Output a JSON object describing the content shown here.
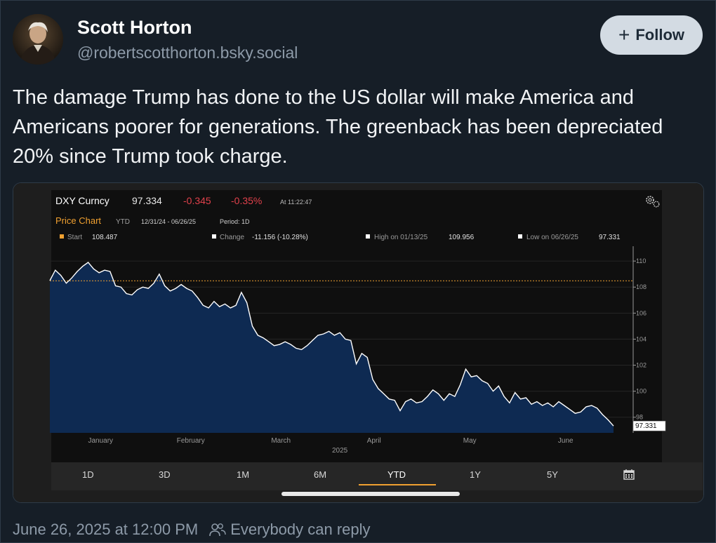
{
  "author": {
    "name": "Scott Horton",
    "handle": "@robertscotthorton.bsky.social"
  },
  "follow_button": {
    "label": "Follow"
  },
  "post": {
    "text": "The damage Trump has done to the US dollar will make America and Americans poorer for generations. The greenback has been depreciated 20% since Trump took charge."
  },
  "chart_header": {
    "ticker": "DXY Curncy",
    "price": "97.334",
    "change": "-0.345",
    "change_pct": "-0.35%",
    "time": "At 11:22:47",
    "chart_title": "Price Chart",
    "range_label": "YTD",
    "date_range": "12/31/24 - 06/26/25",
    "period": "Period: 1D",
    "start_label": "Start",
    "start_value": "108.487",
    "change_label": "Change",
    "change_value": "-11.156 (-10.28%)",
    "high_label": "High on 01/13/25",
    "high_value": "109.956",
    "low_label": "Low on 06/26/25",
    "low_value": "97.331",
    "last_value_label": "97.331",
    "year_label": "2025"
  },
  "timeframes": [
    "1D",
    "3D",
    "1M",
    "6M",
    "YTD",
    "1Y",
    "5Y"
  ],
  "active_timeframe": "YTD",
  "colors": {
    "accent_orange": "#f0a030",
    "negative_red": "#e0414b",
    "area_fill": "#0e2a52",
    "line": "#ffffff"
  },
  "chart_data": {
    "type": "area",
    "x_tick_labels": [
      "January",
      "February",
      "March",
      "April",
      "May",
      "June"
    ],
    "y_ticks": [
      98,
      100,
      102,
      104,
      106,
      108,
      110
    ],
    "ylim": [
      96.8,
      110.6
    ],
    "start_reference": 108.487,
    "series": [
      {
        "values": [
          108.5,
          109.3,
          108.9,
          108.3,
          108.7,
          109.2,
          109.6,
          109.9,
          109.4,
          109.1,
          109.3,
          109.2,
          108.1,
          108.0,
          107.5,
          107.4,
          107.8,
          108.0,
          107.9,
          108.3,
          109.0,
          108.1,
          107.7,
          107.9,
          108.2,
          107.9,
          107.7,
          107.2,
          106.6,
          106.4,
          106.9,
          106.5,
          106.7,
          106.4,
          106.6,
          107.6,
          106.8,
          105.0,
          104.3,
          104.1,
          103.8,
          103.5,
          103.6,
          103.8,
          103.6,
          103.3,
          103.2,
          103.5,
          103.9,
          104.3,
          104.4,
          104.6,
          104.3,
          104.5,
          104.0,
          103.9,
          102.1,
          102.9,
          102.6,
          100.9,
          100.2,
          99.8,
          99.4,
          99.3,
          98.5,
          99.2,
          99.4,
          99.1,
          99.2,
          99.6,
          100.1,
          99.8,
          99.3,
          99.8,
          99.6,
          100.5,
          101.7,
          101.1,
          101.2,
          100.8,
          100.6,
          100.0,
          100.4,
          99.6,
          99.1,
          99.9,
          99.4,
          99.5,
          99.0,
          99.2,
          98.9,
          99.1,
          98.8,
          99.2,
          98.9,
          98.6,
          98.3,
          98.4,
          98.8,
          98.9,
          98.7,
          98.2,
          97.8,
          97.33
        ]
      }
    ]
  }
}
